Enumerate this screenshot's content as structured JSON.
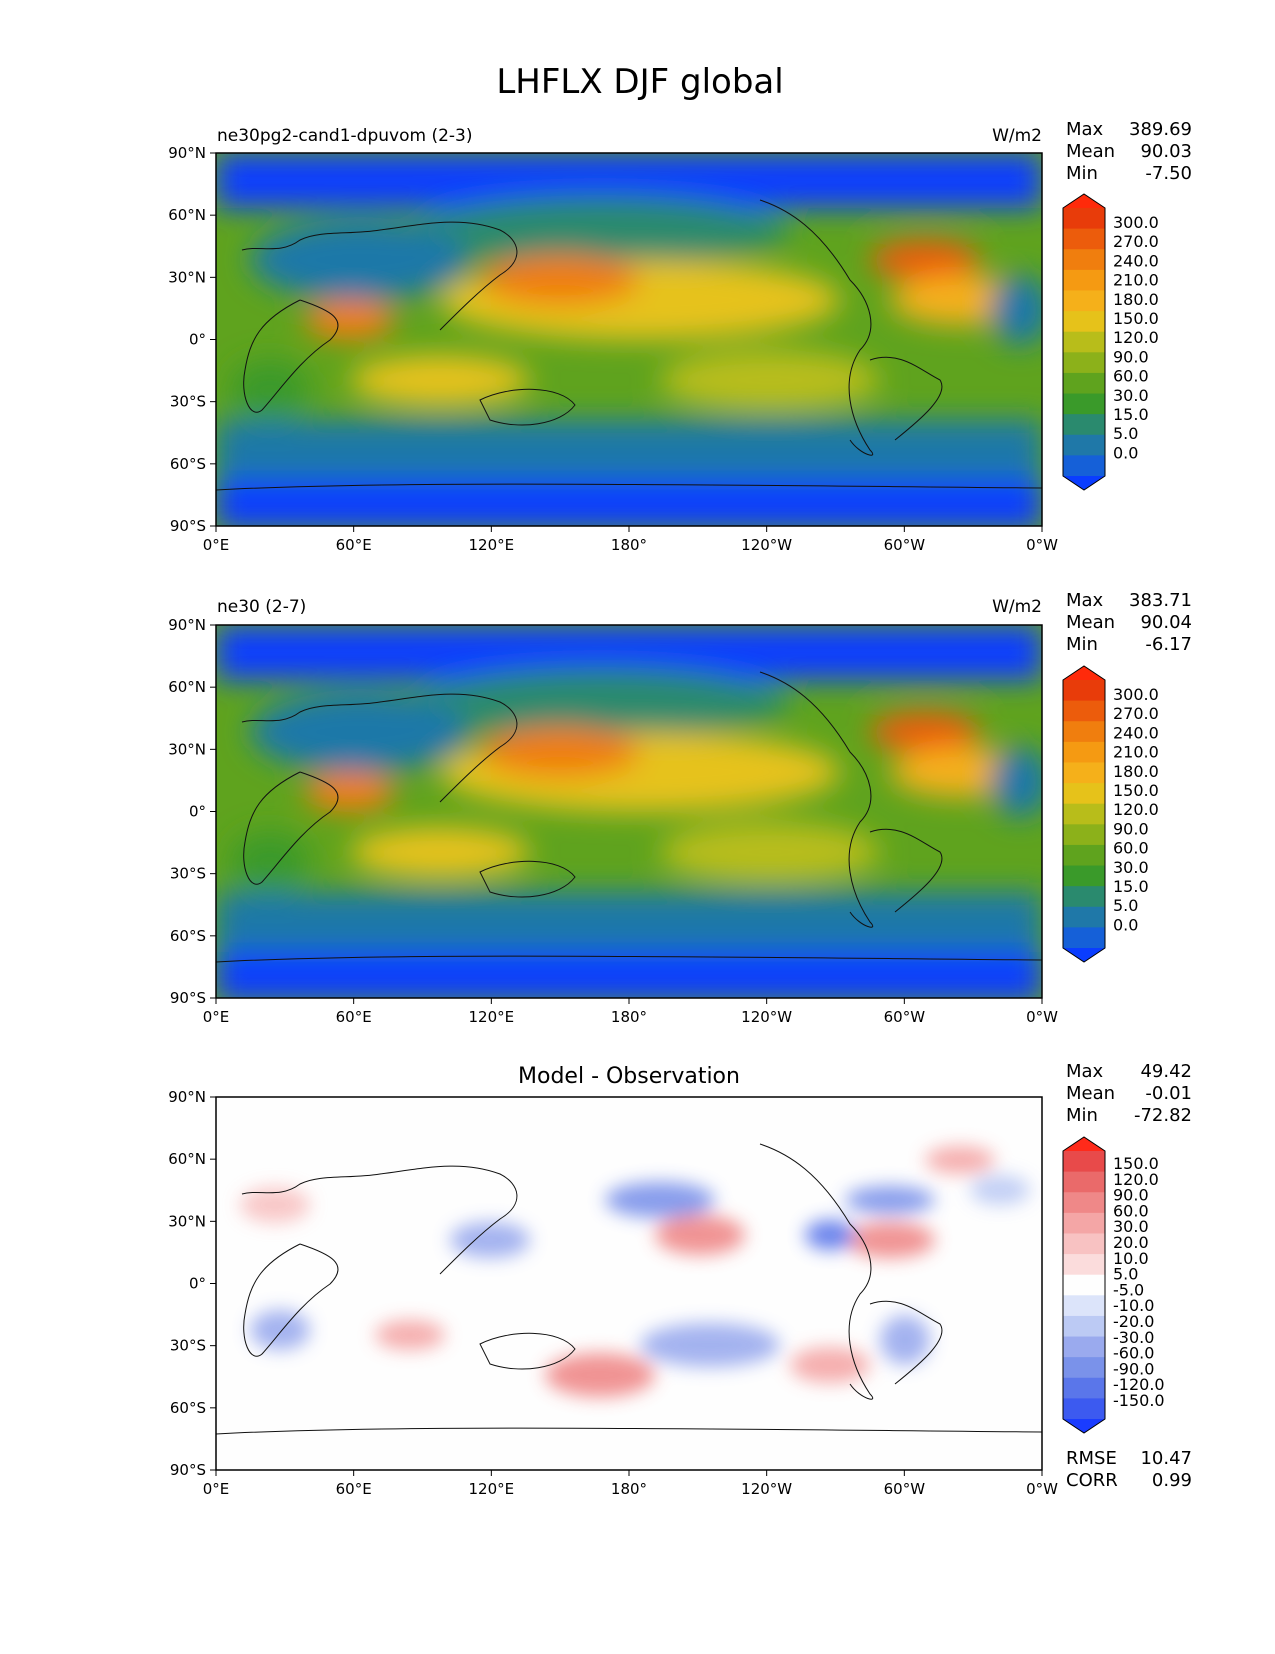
{
  "title": "LHFLX DJF global",
  "x_ticks": [
    "0°E",
    "60°E",
    "120°E",
    "180°",
    "120°W",
    "60°W",
    "0°W"
  ],
  "y_ticks": [
    "90°N",
    "60°N",
    "30°N",
    "0°",
    "30°S",
    "60°S",
    "90°S"
  ],
  "stat_labels": {
    "max": "Max",
    "mean": "Mean",
    "min": "Min",
    "rmse": "RMSE",
    "corr": "CORR"
  },
  "colors": {
    "field_levels": [
      "#0a3dff",
      "#1560d8",
      "#1f78a8",
      "#2a8a6e",
      "#3a9a2a",
      "#5fa31e",
      "#8cb11a",
      "#b8bd1a",
      "#e6c21a",
      "#f5b01a",
      "#f59a12",
      "#f07e0e",
      "#ec5c0c",
      "#e83c0a",
      "#ff2a0a"
    ],
    "diff_levels": [
      "#1a3cff",
      "#3c5af0",
      "#5a76ea",
      "#7a92ea",
      "#9aaaee",
      "#bccaf4",
      "#dce4fa",
      "#fefefe",
      "#fbdcdc",
      "#f8c2c2",
      "#f4a6a6",
      "#ef8888",
      "#ea6a6a",
      "#e84a4a",
      "#ff2a1a"
    ],
    "ocean_low": "#1f78a8",
    "land_mid": "#5fa31e"
  },
  "panels": [
    {
      "name": "test",
      "label": "ne30pg2-cand1-dpuvom (2-3)",
      "units": "W/m2",
      "stats": {
        "max": "389.69",
        "mean": "90.03",
        "min": "-7.50"
      },
      "colorbar_ticks": [
        "300.0",
        "270.0",
        "240.0",
        "210.0",
        "180.0",
        "150.0",
        "120.0",
        "90.0",
        "60.0",
        "30.0",
        "15.0",
        "5.0",
        "0.0"
      ]
    },
    {
      "name": "reference",
      "label": "ne30 (2-7)",
      "units": "W/m2",
      "stats": {
        "max": "383.71",
        "mean": "90.04",
        "min": "-6.17"
      },
      "colorbar_ticks": [
        "300.0",
        "270.0",
        "240.0",
        "210.0",
        "180.0",
        "150.0",
        "120.0",
        "90.0",
        "60.0",
        "30.0",
        "15.0",
        "5.0",
        "0.0"
      ]
    },
    {
      "name": "difference",
      "title": "Model - Observation",
      "stats": {
        "max": "49.42",
        "mean": "-0.01",
        "min": "-72.82",
        "rmse": "10.47",
        "corr": "0.99"
      },
      "colorbar_ticks": [
        "150.0",
        "120.0",
        "90.0",
        "60.0",
        "30.0",
        "20.0",
        "10.0",
        "5.0",
        "-5.0",
        "-10.0",
        "-20.0",
        "-30.0",
        "-60.0",
        "-90.0",
        "-120.0",
        "-150.0"
      ]
    }
  ],
  "chart_data": [
    {
      "type": "heatmap",
      "title": "ne30pg2-cand1-dpuvom (2-3)",
      "variable": "LHFLX",
      "season": "DJF",
      "units": "W/m2",
      "xlim": [
        0,
        360
      ],
      "ylim": [
        -90,
        90
      ],
      "contour_levels": [
        0,
        5,
        15,
        30,
        60,
        90,
        120,
        150,
        180,
        210,
        240,
        270,
        300
      ],
      "max": 389.69,
      "mean": 90.03,
      "min": -7.5
    },
    {
      "type": "heatmap",
      "title": "ne30 (2-7)",
      "variable": "LHFLX",
      "season": "DJF",
      "units": "W/m2",
      "xlim": [
        0,
        360
      ],
      "ylim": [
        -90,
        90
      ],
      "contour_levels": [
        0,
        5,
        15,
        30,
        60,
        90,
        120,
        150,
        180,
        210,
        240,
        270,
        300
      ],
      "max": 383.71,
      "mean": 90.04,
      "min": -6.17
    },
    {
      "type": "heatmap",
      "title": "Model - Observation",
      "variable": "LHFLX difference",
      "units": "W/m2",
      "xlim": [
        0,
        360
      ],
      "ylim": [
        -90,
        90
      ],
      "contour_levels": [
        -150,
        -120,
        -90,
        -60,
        -30,
        -20,
        -10,
        -5,
        5,
        10,
        20,
        30,
        60,
        90,
        120,
        150
      ],
      "max": 49.42,
      "mean": -0.01,
      "min": -72.82,
      "rmse": 10.47,
      "corr": 0.99
    }
  ]
}
